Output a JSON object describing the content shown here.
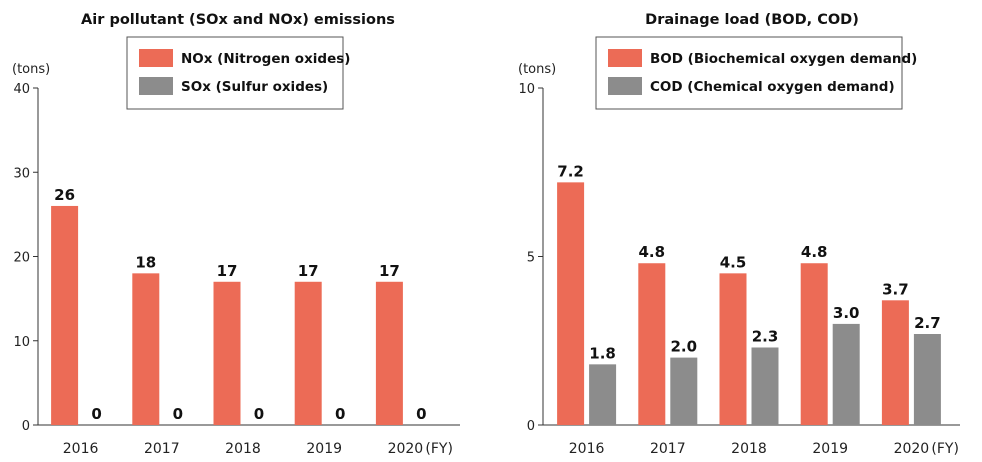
{
  "colors": {
    "primary": "#ec6b56",
    "secondary": "#8c8c8c",
    "axis": "#333333",
    "text": "#222222"
  },
  "chart_data": [
    {
      "type": "bar",
      "title": "Air pollutant (SOx and NOx) emissions",
      "ylabel": "(tons)",
      "xlabel": "",
      "fy_suffix": "(FY)",
      "categories": [
        "2016",
        "2017",
        "2018",
        "2019",
        "2020"
      ],
      "ylim": [
        0,
        40
      ],
      "yticks": [
        "0",
        "10",
        "20",
        "30",
        "40"
      ],
      "legend_position": "top-center",
      "series": [
        {
          "name": "NOx (Nitrogen oxides)",
          "color": "#ec6b56",
          "values": [
            26,
            18,
            17,
            17,
            17
          ],
          "labels": [
            "26",
            "18",
            "17",
            "17",
            "17"
          ]
        },
        {
          "name": "SOx (Sulfur oxides)",
          "color": "#8c8c8c",
          "values": [
            0,
            0,
            0,
            0,
            0
          ],
          "labels": [
            "0",
            "0",
            "0",
            "0",
            "0"
          ]
        }
      ]
    },
    {
      "type": "bar",
      "title": "Drainage load (BOD, COD)",
      "ylabel": "(tons)",
      "xlabel": "",
      "fy_suffix": "(FY)",
      "categories": [
        "2016",
        "2017",
        "2018",
        "2019",
        "2020"
      ],
      "ylim": [
        0,
        10
      ],
      "yticks": [
        "0",
        "5",
        "10"
      ],
      "legend_position": "top-center",
      "series": [
        {
          "name": "BOD (Biochemical oxygen demand)",
          "color": "#ec6b56",
          "values": [
            7.2,
            4.8,
            4.5,
            4.8,
            3.7
          ],
          "labels": [
            "7.2",
            "4.8",
            "4.5",
            "4.8",
            "3.7"
          ]
        },
        {
          "name": "COD (Chemical oxygen demand)",
          "color": "#8c8c8c",
          "values": [
            1.8,
            2.0,
            2.3,
            3.0,
            2.7
          ],
          "labels": [
            "1.8",
            "2.0",
            "2.3",
            "3.0",
            "2.7"
          ]
        }
      ]
    }
  ]
}
